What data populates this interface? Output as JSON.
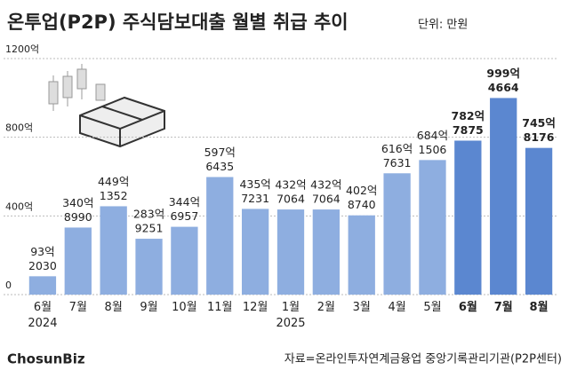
{
  "chart_data": {
    "type": "bar",
    "title": "온투업(P2P) 주식담보대출 월별 취급 추이",
    "unit_note": "단위: 만원",
    "categories": [
      "6월\n2024",
      "7월",
      "8월",
      "9월",
      "10월",
      "11월",
      "12월",
      "1월\n2025",
      "2월",
      "3월",
      "4월",
      "5월",
      "6월",
      "7월",
      "8월"
    ],
    "values": [
      93.203,
      340.899,
      449.1352,
      283.9251,
      344.6957,
      597.6435,
      435.7231,
      432.7064,
      432.7064,
      402.874,
      616.7631,
      684.1506,
      782.7875,
      999.4664,
      745.8176
    ],
    "value_labels": [
      [
        "93억",
        "2030"
      ],
      [
        "340억",
        "8990"
      ],
      [
        "449억",
        "1352"
      ],
      [
        "283억",
        "9251"
      ],
      [
        "344억",
        "6957"
      ],
      [
        "597억",
        "6435"
      ],
      [
        "435억",
        "7231"
      ],
      [
        "432억",
        "7064"
      ],
      [
        "432억",
        "7064"
      ],
      [
        "402억",
        "8740"
      ],
      [
        "616억",
        "7631"
      ],
      [
        "684억",
        "1506"
      ],
      [
        "782억",
        "7875"
      ],
      [
        "999억",
        "4664"
      ],
      [
        "745억",
        "8176"
      ]
    ],
    "colors": [
      "#8eaee0",
      "#8eaee0",
      "#8eaee0",
      "#8eaee0",
      "#8eaee0",
      "#8eaee0",
      "#8eaee0",
      "#8eaee0",
      "#8eaee0",
      "#8eaee0",
      "#8eaee0",
      "#8eaee0",
      "#5b87d0",
      "#5b87d0",
      "#5b87d0"
    ],
    "bold": [
      false,
      false,
      false,
      false,
      false,
      false,
      false,
      false,
      false,
      false,
      false,
      false,
      true,
      true,
      true
    ],
    "ylim": [
      0,
      1200
    ],
    "yticks": [
      {
        "value": 0,
        "label": "0"
      },
      {
        "value": 400,
        "label": "400억"
      },
      {
        "value": 800,
        "label": "800억"
      },
      {
        "value": 1200,
        "label": "1200억"
      }
    ],
    "grid": true,
    "source": "자료=온라인투자연계금융업 중앙기록관리기관(P2P센터)",
    "brand": "ChosunBiz"
  }
}
